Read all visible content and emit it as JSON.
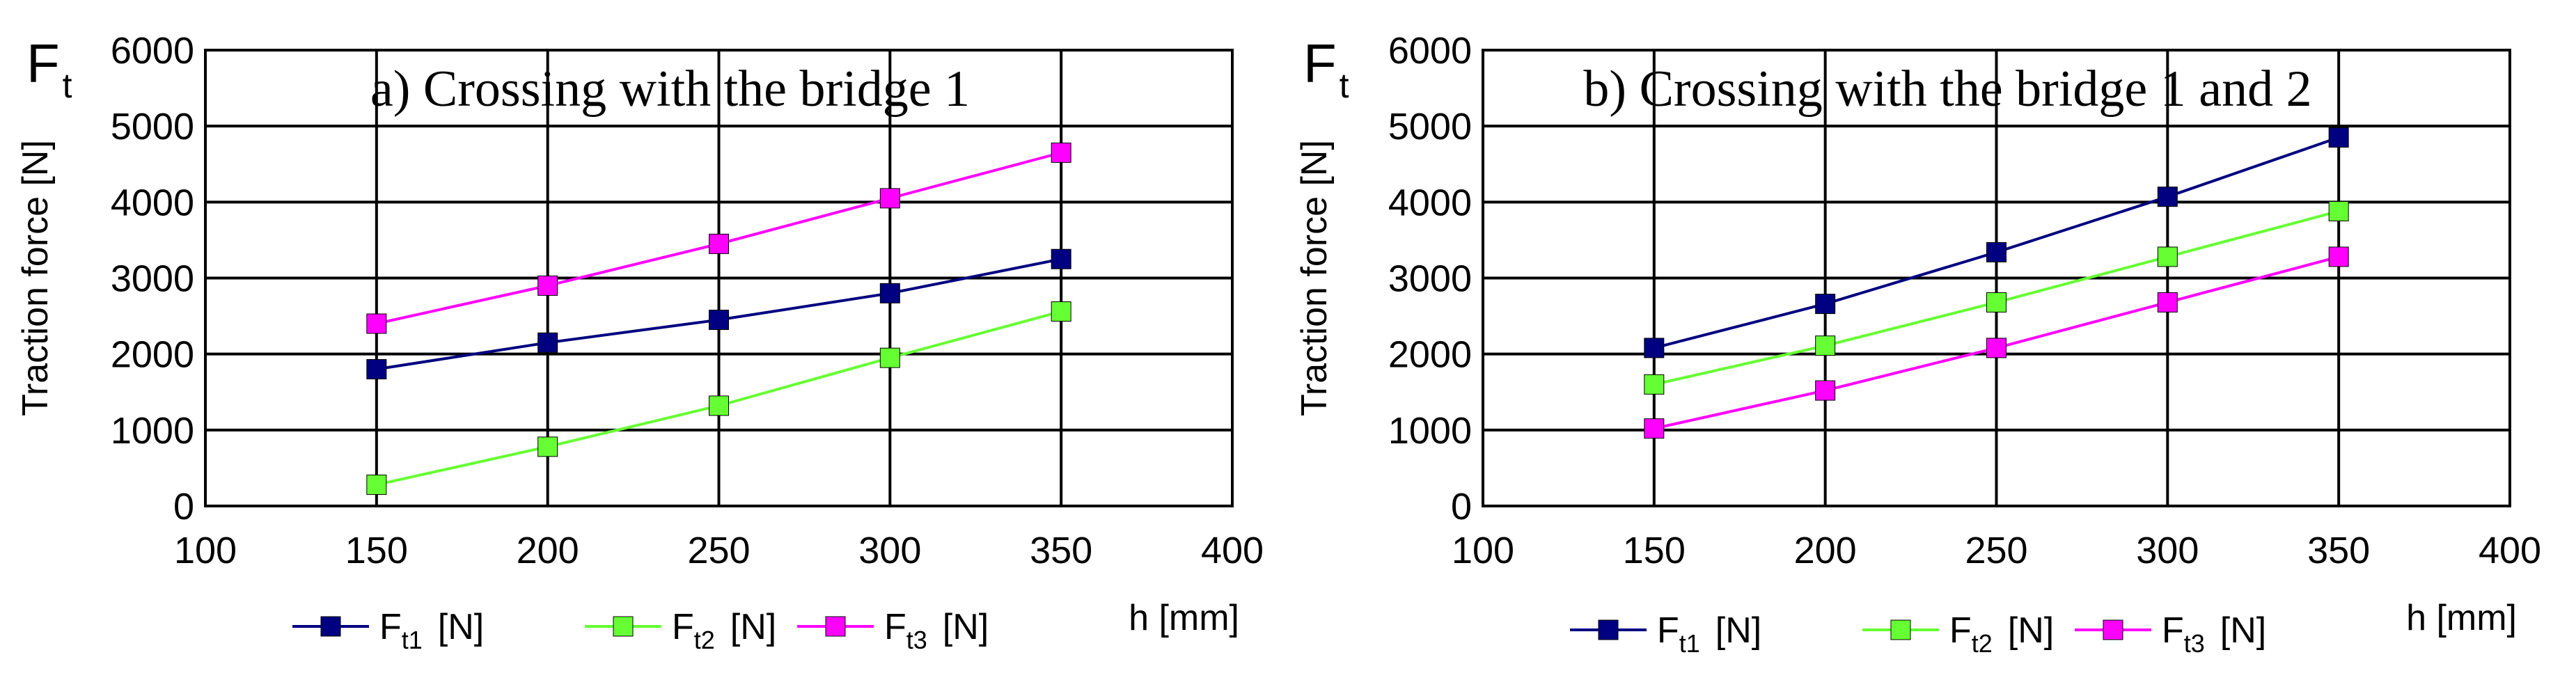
{
  "chart_data": [
    {
      "type": "line",
      "title": "a) Crossing with the bridge 1",
      "corner_label": {
        "symbol": "F",
        "subscript": "t"
      },
      "xlabel": "h [mm]",
      "ylabel": "Traction force [N]",
      "xlim": [
        100,
        400
      ],
      "ylim": [
        0,
        6000
      ],
      "xticks": [
        100,
        150,
        200,
        250,
        300,
        350,
        400
      ],
      "yticks": [
        0,
        1000,
        2000,
        3000,
        4000,
        5000,
        6000
      ],
      "grid": true,
      "legend_position": "bottom",
      "x": [
        150,
        200,
        250,
        300,
        350
      ],
      "series": [
        {
          "name": "Ft1 [N]",
          "legend_main": "F",
          "legend_sub": "t1",
          "legend_unit": "[N]",
          "color": "#000080",
          "values": [
            1800,
            2150,
            2450,
            2800,
            3250
          ]
        },
        {
          "name": "Ft2 [N]",
          "legend_main": "F",
          "legend_sub": "t2",
          "legend_unit": "[N]",
          "color": "#66ff33",
          "values": [
            280,
            780,
            1320,
            1950,
            2560
          ]
        },
        {
          "name": "Ft3 [N]",
          "legend_main": "F",
          "legend_sub": "t3",
          "legend_unit": "[N]",
          "color": "#ff00ff",
          "values": [
            2400,
            2900,
            3450,
            4050,
            4650
          ]
        }
      ]
    },
    {
      "type": "line",
      "title": "b) Crossing with the bridge 1 and 2",
      "corner_label": {
        "symbol": "F",
        "subscript": "t"
      },
      "xlabel": "h [mm]",
      "ylabel": "Traction force [N]",
      "xlim": [
        100,
        400
      ],
      "ylim": [
        0,
        6000
      ],
      "xticks": [
        100,
        150,
        200,
        250,
        300,
        350,
        400
      ],
      "yticks": [
        0,
        1000,
        2000,
        3000,
        4000,
        5000,
        6000
      ],
      "grid": true,
      "legend_position": "bottom",
      "x": [
        150,
        200,
        250,
        300,
        350
      ],
      "series": [
        {
          "name": "Ft1 [N]",
          "legend_main": "F",
          "legend_sub": "t1",
          "legend_unit": "[N]",
          "color": "#000080",
          "values": [
            2080,
            2660,
            3340,
            4070,
            4850
          ]
        },
        {
          "name": "Ft2 [N]",
          "legend_main": "F",
          "legend_sub": "t2",
          "legend_unit": "[N]",
          "color": "#66ff33",
          "values": [
            1600,
            2110,
            2680,
            3280,
            3880
          ]
        },
        {
          "name": "Ft3 [N]",
          "legend_main": "F",
          "legend_sub": "t3",
          "legend_unit": "[N]",
          "color": "#ff00ff",
          "values": [
            1020,
            1520,
            2080,
            2680,
            3280
          ]
        }
      ]
    }
  ]
}
